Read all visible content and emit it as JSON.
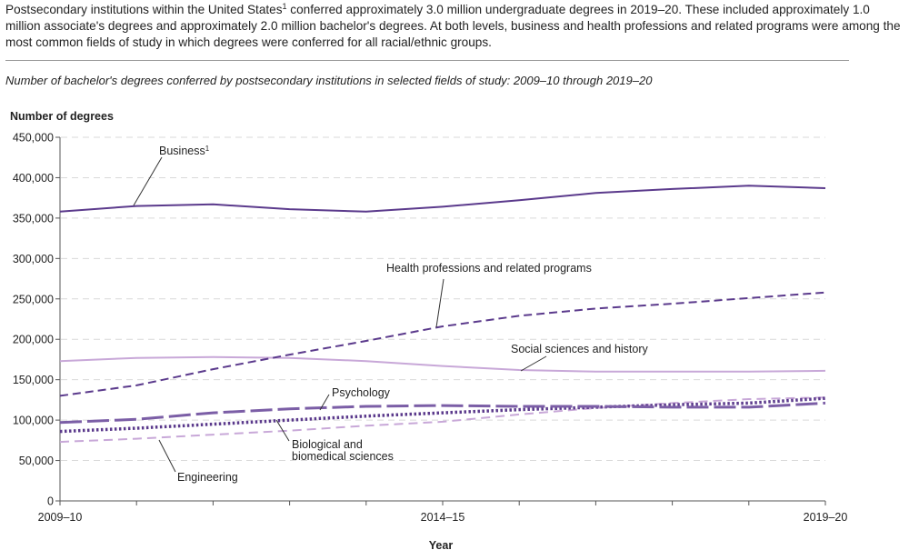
{
  "intro": {
    "part1": "Postsecondary institutions within the United States",
    "footnote": "1",
    "part2": " conferred approximately 3.0 million undergraduate degrees in 2019–20. These included approximately 1.0 million associate's degrees and approximately 2.0 million bachelor's degrees. At both levels, business and health professions and related programs were among the most common fields of study in which degrees were conferred for all racial/ethnic groups."
  },
  "chart_data": {
    "type": "line",
    "title": "Number of bachelor's degrees conferred by postsecondary institutions in selected fields of study: 2009–10 through 2019–20",
    "ylabel": "Number of degrees",
    "xlabel": "Year",
    "ylim": [
      0,
      450000
    ],
    "yticks": [
      0,
      50000,
      100000,
      150000,
      200000,
      250000,
      300000,
      350000,
      400000,
      450000
    ],
    "ytick_labels": [
      "0",
      "50,000",
      "100,000",
      "150,000",
      "200,000",
      "250,000",
      "300,000",
      "350,000",
      "400,000",
      "450,000"
    ],
    "x": [
      "2009–10",
      "2010–11",
      "2011–12",
      "2012–13",
      "2013–14",
      "2014–15",
      "2015–16",
      "2016–17",
      "2017–18",
      "2018–19",
      "2019–20"
    ],
    "x_tick_labels": [
      {
        "index": 0,
        "label": "2009–10"
      },
      {
        "index": 5,
        "label": "2014–15"
      },
      {
        "index": 10,
        "label": "2019–20"
      }
    ],
    "grid": true,
    "series": [
      {
        "name": "Business",
        "footnote": "1",
        "label": "Business1",
        "style": "solid",
        "color": "#5b3a8c",
        "values": [
          358000,
          365000,
          367000,
          361000,
          358000,
          364000,
          372000,
          381000,
          386000,
          390000,
          387000
        ]
      },
      {
        "name": "Health professions and related programs",
        "style": "dashed",
        "color": "#5b3a8c",
        "values": [
          130000,
          143000,
          163000,
          181000,
          198000,
          216000,
          229000,
          238000,
          244000,
          251000,
          258000
        ]
      },
      {
        "name": "Social sciences and history",
        "style": "solid-light",
        "color": "#c8a8d8",
        "values": [
          173000,
          177000,
          178000,
          177000,
          173000,
          167000,
          162000,
          160000,
          160000,
          160000,
          161000
        ]
      },
      {
        "name": "Psychology",
        "style": "long-dash",
        "color": "#7b5ea6",
        "values": [
          97000,
          101000,
          109000,
          114000,
          117000,
          118000,
          117000,
          117000,
          116000,
          116000,
          121000
        ]
      },
      {
        "name": "Biological and biomedical sciences",
        "style": "dotted",
        "color": "#5b3a8c",
        "values": [
          86000,
          90000,
          95000,
          100000,
          105000,
          109000,
          113000,
          116000,
          119000,
          121000,
          127000
        ]
      },
      {
        "name": "Engineering",
        "style": "dashed-light",
        "color": "#c8a8d8",
        "values": [
          73000,
          77000,
          82000,
          87000,
          93000,
          98000,
          107000,
          115000,
          121000,
          126000,
          128000
        ]
      }
    ],
    "annotations": [
      {
        "series": 0,
        "text": "Business",
        "sup": "1"
      },
      {
        "series": 1,
        "text": "Health professions and related programs"
      },
      {
        "series": 2,
        "text": "Social sciences and history"
      },
      {
        "series": 3,
        "text": "Psychology"
      },
      {
        "series": 4,
        "lines": [
          "Biological and",
          "biomedical sciences"
        ]
      },
      {
        "series": 5,
        "text": "Engineering"
      }
    ]
  }
}
